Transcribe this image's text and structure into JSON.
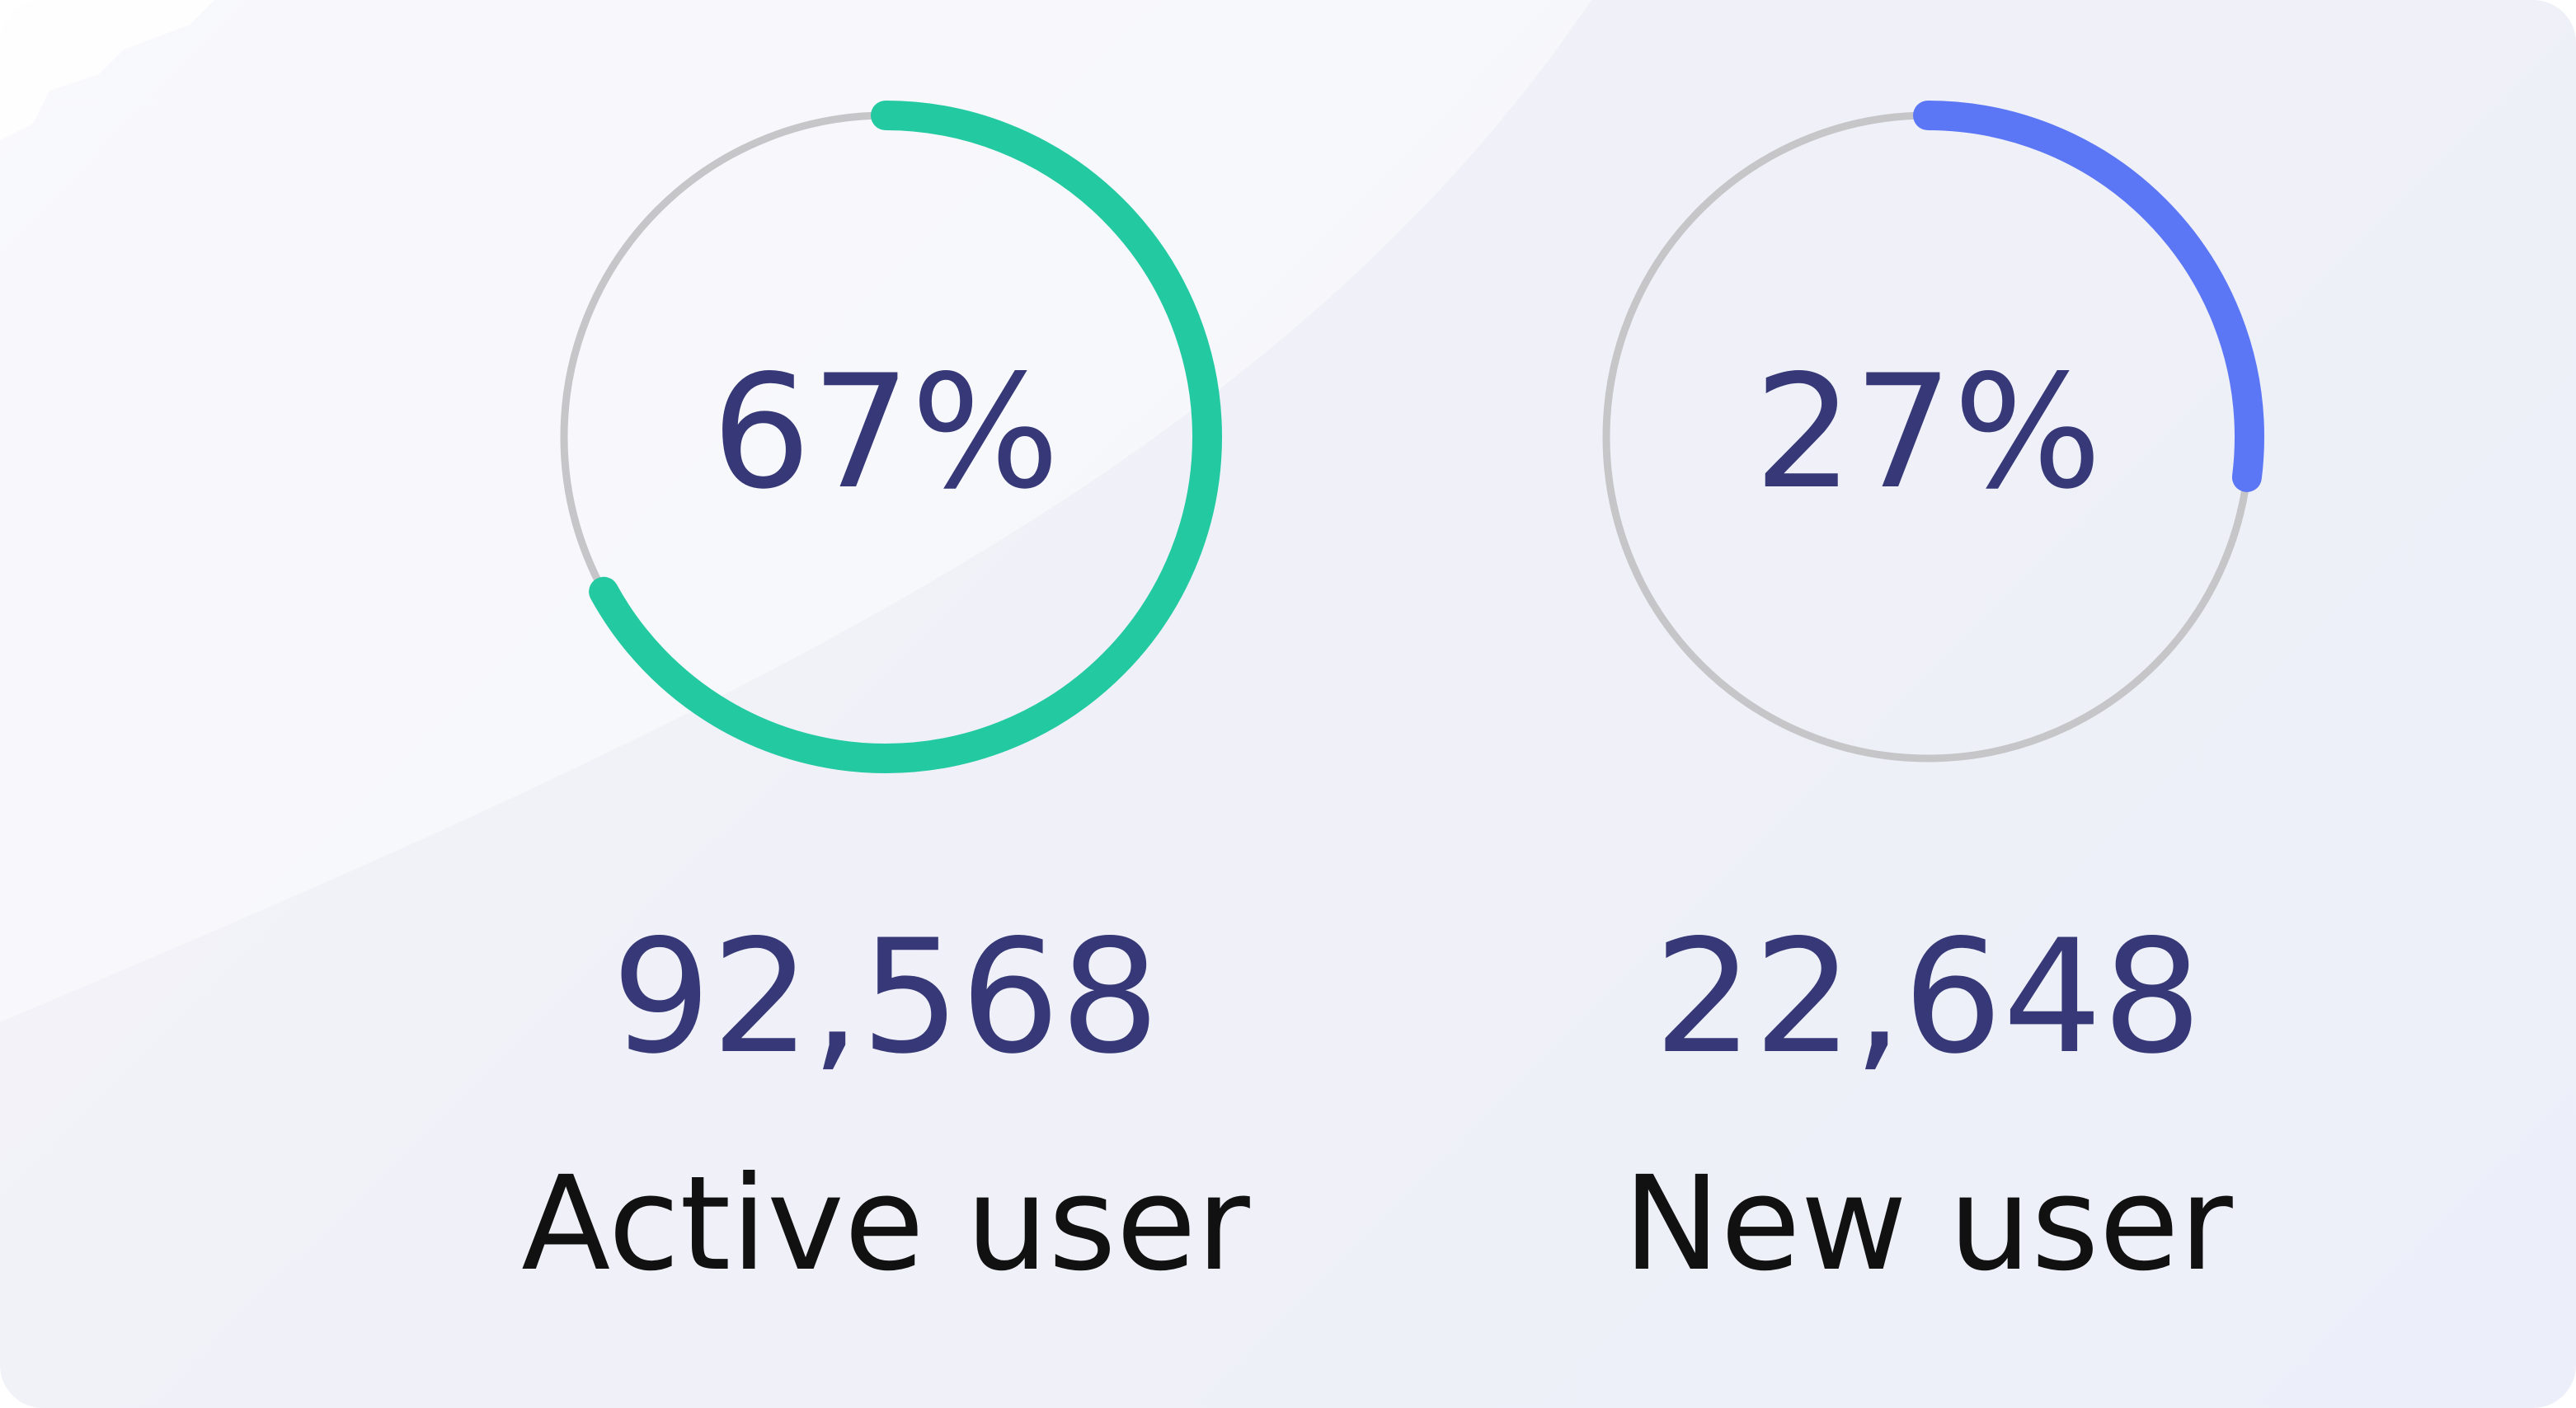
{
  "colors": {
    "active_ring": "#22c9a1",
    "new_ring": "#5b77f5",
    "track": "#c6c6c9",
    "number_text": "#363877",
    "label_text": "#111111"
  },
  "stats": [
    {
      "percent_label": "67%",
      "percent_value": 0.67,
      "count": "92,568",
      "label": "Active user"
    },
    {
      "percent_label": "27%",
      "percent_value": 0.27,
      "count": "22,648",
      "label": "New user"
    }
  ]
}
